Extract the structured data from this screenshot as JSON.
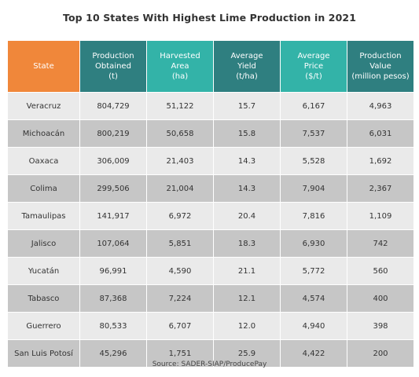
{
  "chart_data": {
    "type": "table",
    "title": "Top 10 States With Highest Lime Production in 2021",
    "columns": [
      {
        "lines": [
          "State"
        ]
      },
      {
        "lines": [
          "Production",
          "Obtained",
          "(t)"
        ]
      },
      {
        "lines": [
          "Harvested",
          "Area",
          "(ha)"
        ]
      },
      {
        "lines": [
          "Average",
          "Yield",
          "(t/ha)"
        ]
      },
      {
        "lines": [
          "Average",
          "Price",
          "($/t)"
        ]
      },
      {
        "lines": [
          "Production",
          "Value",
          "(million pesos)"
        ]
      }
    ],
    "rows": [
      [
        "Veracruz",
        "804,729",
        "51,122",
        "15.7",
        "6,167",
        "4,963"
      ],
      [
        "Michoacán",
        "800,219",
        "50,658",
        "15.8",
        "7,537",
        "6,031"
      ],
      [
        "Oaxaca",
        "306,009",
        "21,403",
        "14.3",
        "5,528",
        "1,692"
      ],
      [
        "Colima",
        "299,506",
        "21,004",
        "14.3",
        "7,904",
        "2,367"
      ],
      [
        "Tamaulipas",
        "141,917",
        "6,972",
        "20.4",
        "7,816",
        "1,109"
      ],
      [
        "Jalisco",
        "107,064",
        "5,851",
        "18.3",
        "6,930",
        "742"
      ],
      [
        "Yucatán",
        "96,991",
        "4,590",
        "21.1",
        "5,772",
        "560"
      ],
      [
        "Tabasco",
        "87,368",
        "7,224",
        "12.1",
        "4,574",
        "400"
      ],
      [
        "Guerrero",
        "80,533",
        "6,707",
        "12.0",
        "4,940",
        "398"
      ],
      [
        "San Luis Potosí",
        "45,296",
        "1,751",
        "25.9",
        "4,422",
        "200"
      ]
    ],
    "source": "Source: SADER-SIAP/ProducePay"
  },
  "colors": {
    "state_header": "#f0873a",
    "dark_header": "#2f7f80",
    "light_header": "#33b3a8",
    "row_light": "#eaeaea",
    "row_dark": "#c6c6c6"
  }
}
